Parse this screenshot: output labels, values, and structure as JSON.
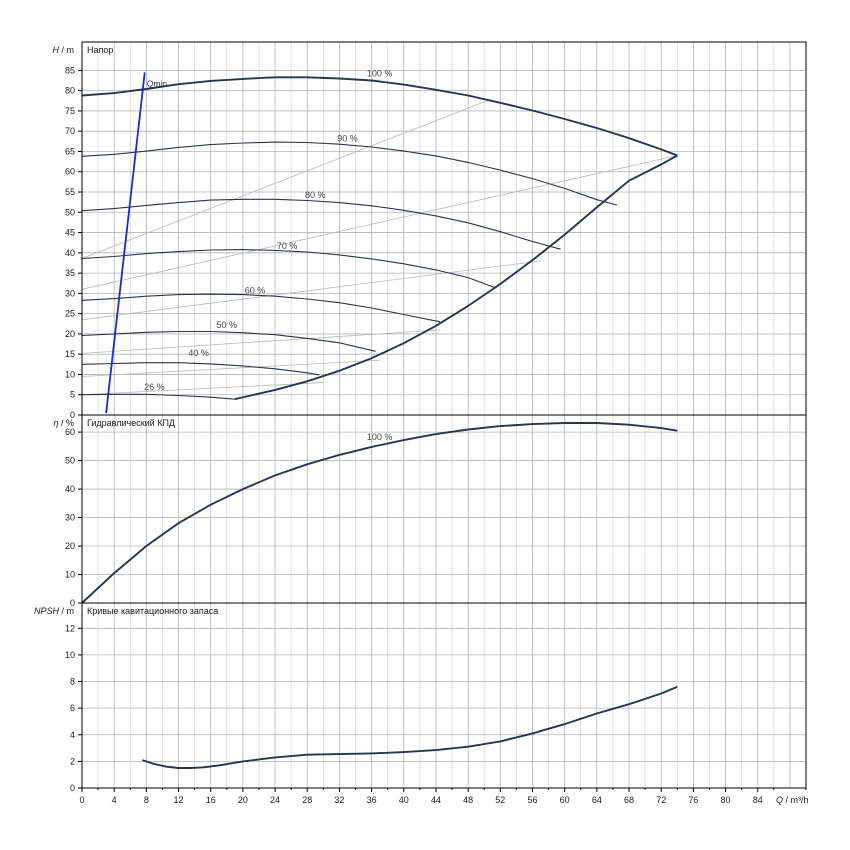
{
  "colors": {
    "grid": "#b4b4b4",
    "grid_minor": "#d8d8d8",
    "axis": "#000000",
    "curve": "#2b3448",
    "iso": "#b8b8b8",
    "qmin": "#1a2bd6",
    "text": "#1a1a1a"
  },
  "x_axis": {
    "label_q": "Q",
    "label_unit": "/ m³/h",
    "range": [
      0,
      90
    ],
    "ticks": [
      0,
      4,
      8,
      12,
      16,
      20,
      24,
      28,
      32,
      36,
      40,
      44,
      48,
      52,
      56,
      60,
      64,
      68,
      72,
      76,
      80,
      84
    ]
  },
  "chart_data": [
    {
      "type": "line",
      "panel": "head",
      "title": "Напор",
      "ylabel_sym": "H",
      "ylabel_unit": "/ m",
      "ylim": [
        0,
        92
      ],
      "yticks": [
        0,
        5,
        10,
        15,
        20,
        25,
        30,
        35,
        40,
        45,
        50,
        55,
        60,
        65,
        70,
        75,
        80,
        85
      ],
      "grid": true,
      "series": [
        {
          "name": "100 %",
          "label_at": [
            37,
            83.5
          ],
          "x": [
            0,
            4,
            8,
            12,
            16,
            20,
            24,
            28,
            32,
            36,
            40,
            44,
            48,
            52,
            56,
            60,
            64,
            68,
            72,
            74
          ],
          "y": [
            78.8,
            79.4,
            80.4,
            81.6,
            82.4,
            82.9,
            83.3,
            83.3,
            83.0,
            82.5,
            81.5,
            80.2,
            78.8,
            77.0,
            75.1,
            73.0,
            70.8,
            68.3,
            65.5,
            64.0
          ]
        },
        {
          "name": "90 %",
          "label_at": [
            33,
            67.5
          ],
          "x": [
            0,
            4,
            8,
            12,
            16,
            20,
            24,
            28,
            32,
            36,
            40,
            44,
            48,
            52,
            56,
            60,
            64,
            66.5
          ],
          "y": [
            63.8,
            64.3,
            65.1,
            66.0,
            66.7,
            67.1,
            67.3,
            67.2,
            66.8,
            66.1,
            65.1,
            63.9,
            62.3,
            60.4,
            58.3,
            55.9,
            53.1,
            51.8
          ]
        },
        {
          "name": "80 %",
          "label_at": [
            29,
            53.5
          ],
          "x": [
            0,
            4,
            8,
            12,
            16,
            20,
            24,
            28,
            32,
            36,
            40,
            44,
            48,
            52,
            56,
            59.5
          ],
          "y": [
            50.4,
            50.9,
            51.7,
            52.4,
            53.0,
            53.2,
            53.2,
            52.9,
            52.4,
            51.6,
            50.5,
            49.1,
            47.4,
            45.2,
            42.8,
            40.9
          ]
        },
        {
          "name": "70 %",
          "label_at": [
            25.5,
            41
          ],
          "x": [
            0,
            4,
            8,
            12,
            16,
            20,
            24,
            28,
            32,
            36,
            40,
            44,
            48,
            51.5
          ],
          "y": [
            38.6,
            39.1,
            39.8,
            40.3,
            40.7,
            40.8,
            40.6,
            40.2,
            39.5,
            38.5,
            37.3,
            35.8,
            33.9,
            31.3
          ]
        },
        {
          "name": "60 %",
          "label_at": [
            21.5,
            30
          ],
          "x": [
            0,
            4,
            8,
            12,
            16,
            20,
            24,
            28,
            32,
            36,
            40,
            44.5
          ],
          "y": [
            28.3,
            28.7,
            29.3,
            29.7,
            29.8,
            29.7,
            29.3,
            28.6,
            27.7,
            26.4,
            24.8,
            23.0
          ]
        },
        {
          "name": "50 %",
          "label_at": [
            18,
            21.5
          ],
          "x": [
            0,
            4,
            8,
            12,
            16,
            20,
            24,
            28,
            32,
            36.5
          ],
          "y": [
            19.6,
            20.0,
            20.4,
            20.6,
            20.6,
            20.3,
            19.8,
            18.9,
            17.8,
            15.7
          ]
        },
        {
          "name": "40 %",
          "label_at": [
            14.5,
            14.5
          ],
          "x": [
            0,
            4,
            8,
            12,
            16,
            20,
            24,
            28,
            29.5
          ],
          "y": [
            12.5,
            12.7,
            12.9,
            12.9,
            12.6,
            12.1,
            11.4,
            10.4,
            9.9
          ]
        },
        {
          "name": "26 %",
          "label_at": [
            9,
            6.2
          ],
          "x": [
            0,
            4,
            8,
            12,
            16,
            19
          ],
          "y": [
            5.0,
            5.1,
            5.1,
            4.8,
            4.4,
            3.9
          ]
        }
      ],
      "boundary_max": {
        "x": [
          19,
          24,
          28,
          32,
          36,
          40,
          44,
          48,
          52,
          56,
          60,
          64,
          68,
          72,
          74
        ],
        "y": [
          3.9,
          6.2,
          8.3,
          10.9,
          14.0,
          17.7,
          22.0,
          26.9,
          32.3,
          38.2,
          44.5,
          51.2,
          57.8,
          61.8,
          64.0
        ]
      },
      "iso_lines": [
        {
          "x": [
            0,
            51
          ],
          "y": [
            38.6,
            78.0
          ]
        },
        {
          "x": [
            0,
            74
          ],
          "y": [
            31.0,
            64.0
          ]
        },
        {
          "x": [
            0,
            57
          ],
          "y": [
            23.5,
            38.0
          ]
        },
        {
          "x": [
            0,
            44.5
          ],
          "y": [
            15.2,
            21.0
          ]
        },
        {
          "x": [
            0,
            37
          ],
          "y": [
            9.5,
            13.5
          ]
        },
        {
          "x": [
            0,
            30
          ],
          "y": [
            5.0,
            8.0
          ]
        }
      ],
      "qmin": {
        "label": "Qmin",
        "x": [
          3.0,
          7.8
        ],
        "y": [
          0.5,
          84.5
        ],
        "label_at": [
          7.8,
          81.0
        ]
      }
    },
    {
      "type": "line",
      "panel": "efficiency",
      "title": "Гидравлический КПД",
      "ylabel_sym": "η",
      "ylabel_unit": "/ %",
      "ylim": [
        0,
        66
      ],
      "yticks": [
        0,
        10,
        20,
        30,
        40,
        50,
        60
      ],
      "grid": true,
      "series": [
        {
          "name": "100 %",
          "label_at": [
            37,
            57.2
          ],
          "x": [
            0,
            4,
            8,
            12,
            16,
            20,
            24,
            28,
            32,
            36,
            40,
            44,
            48,
            52,
            56,
            60,
            64,
            68,
            72,
            74
          ],
          "y": [
            0,
            10.5,
            20,
            28,
            34.5,
            40,
            44.8,
            48.7,
            52,
            54.8,
            57.2,
            59.3,
            60.9,
            62.1,
            62.8,
            63.2,
            63.2,
            62.6,
            61.4,
            60.5
          ]
        }
      ]
    },
    {
      "type": "line",
      "panel": "npsh",
      "title": "Кривые кавитационного запаса",
      "ylabel_sym": "NPSH",
      "ylabel_unit": "/ m",
      "ylim": [
        0,
        13.9
      ],
      "yticks": [
        0,
        2,
        4,
        6,
        8,
        10,
        12
      ],
      "grid": true,
      "series": [
        {
          "x": [
            7.5,
            9,
            10.5,
            12,
            13.5,
            15,
            17,
            20,
            24,
            28,
            32,
            36,
            40,
            44,
            48,
            52,
            56,
            60,
            64,
            68,
            72,
            74
          ],
          "y": [
            2.1,
            1.8,
            1.6,
            1.5,
            1.5,
            1.55,
            1.7,
            2.0,
            2.3,
            2.5,
            2.55,
            2.6,
            2.7,
            2.85,
            3.1,
            3.5,
            4.1,
            4.8,
            5.6,
            6.3,
            7.1,
            7.6
          ]
        }
      ]
    }
  ]
}
